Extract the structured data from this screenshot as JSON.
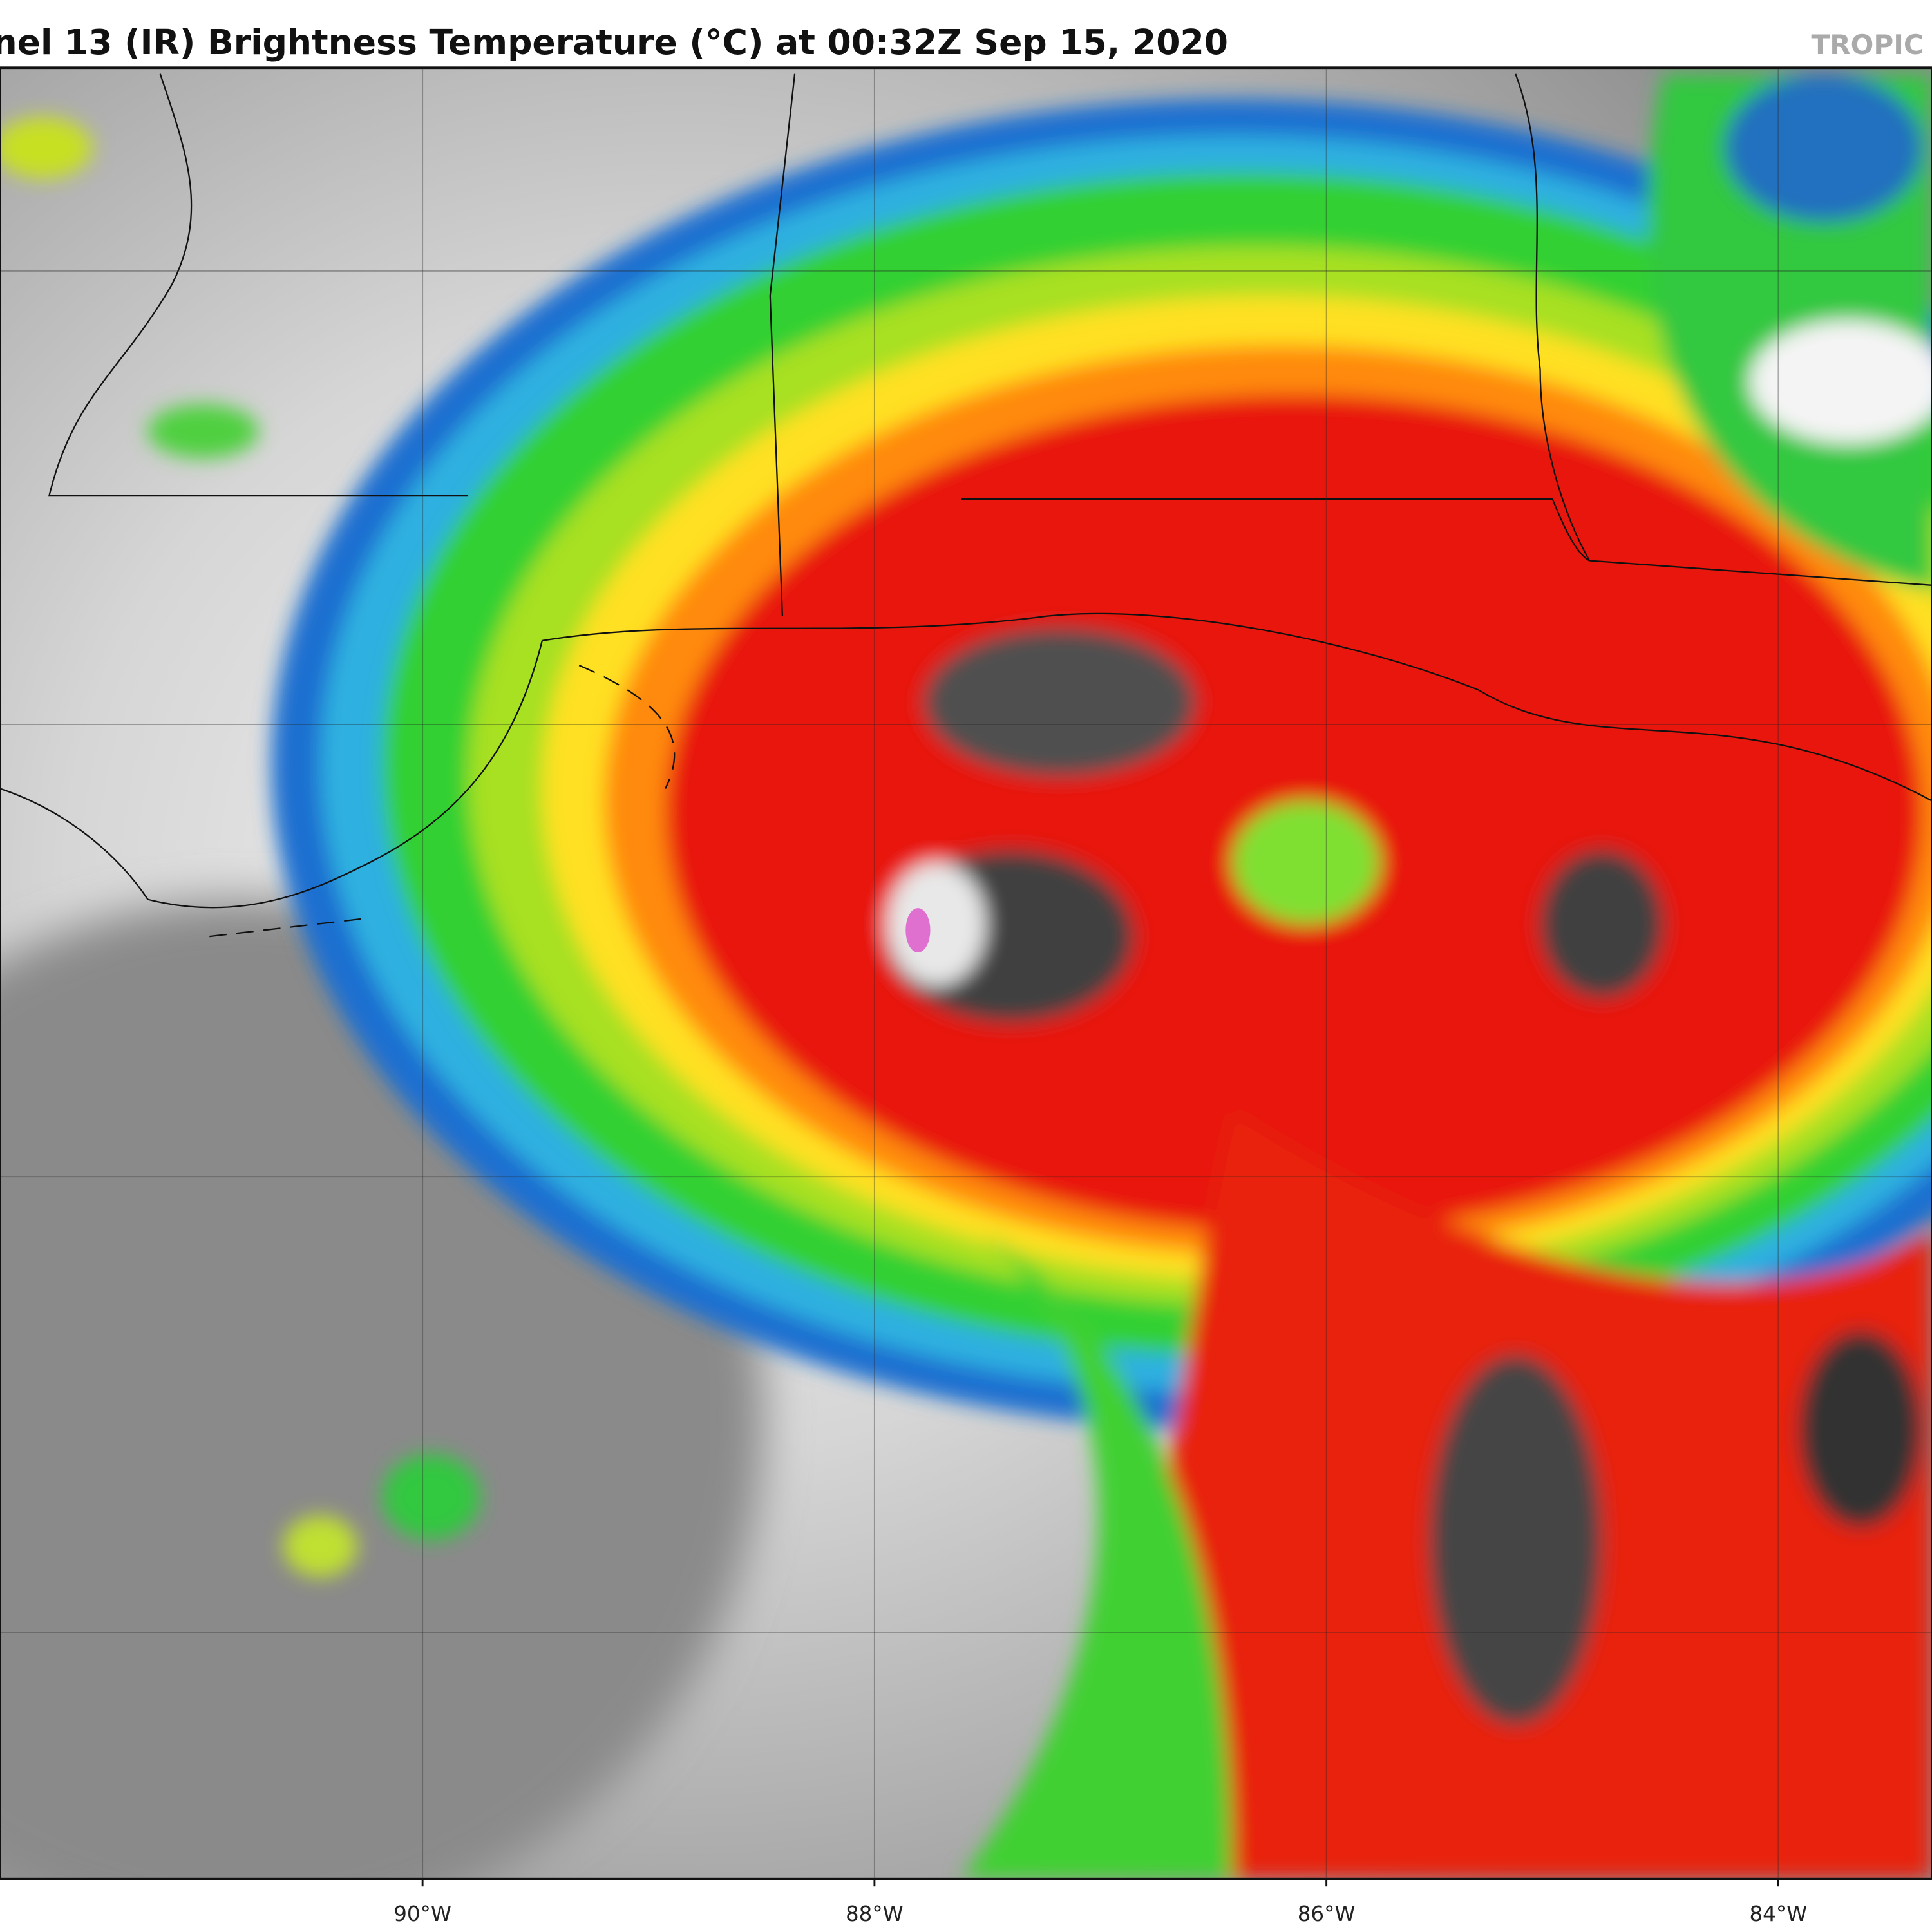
{
  "map": {
    "title": "nel 13 (IR) Brightness Temperature (°C) at 00:32Z Sep 15, 2020",
    "watermark": "TROPIC",
    "lon_range": [
      -91.87,
      -83.32
    ],
    "lon_ticks": [
      {
        "value": -90,
        "label": "90°W"
      },
      {
        "value": -88,
        "label": "88°W"
      },
      {
        "value": -86,
        "label": "86°W"
      },
      {
        "value": -84,
        "label": "84°W"
      }
    ]
  }
}
